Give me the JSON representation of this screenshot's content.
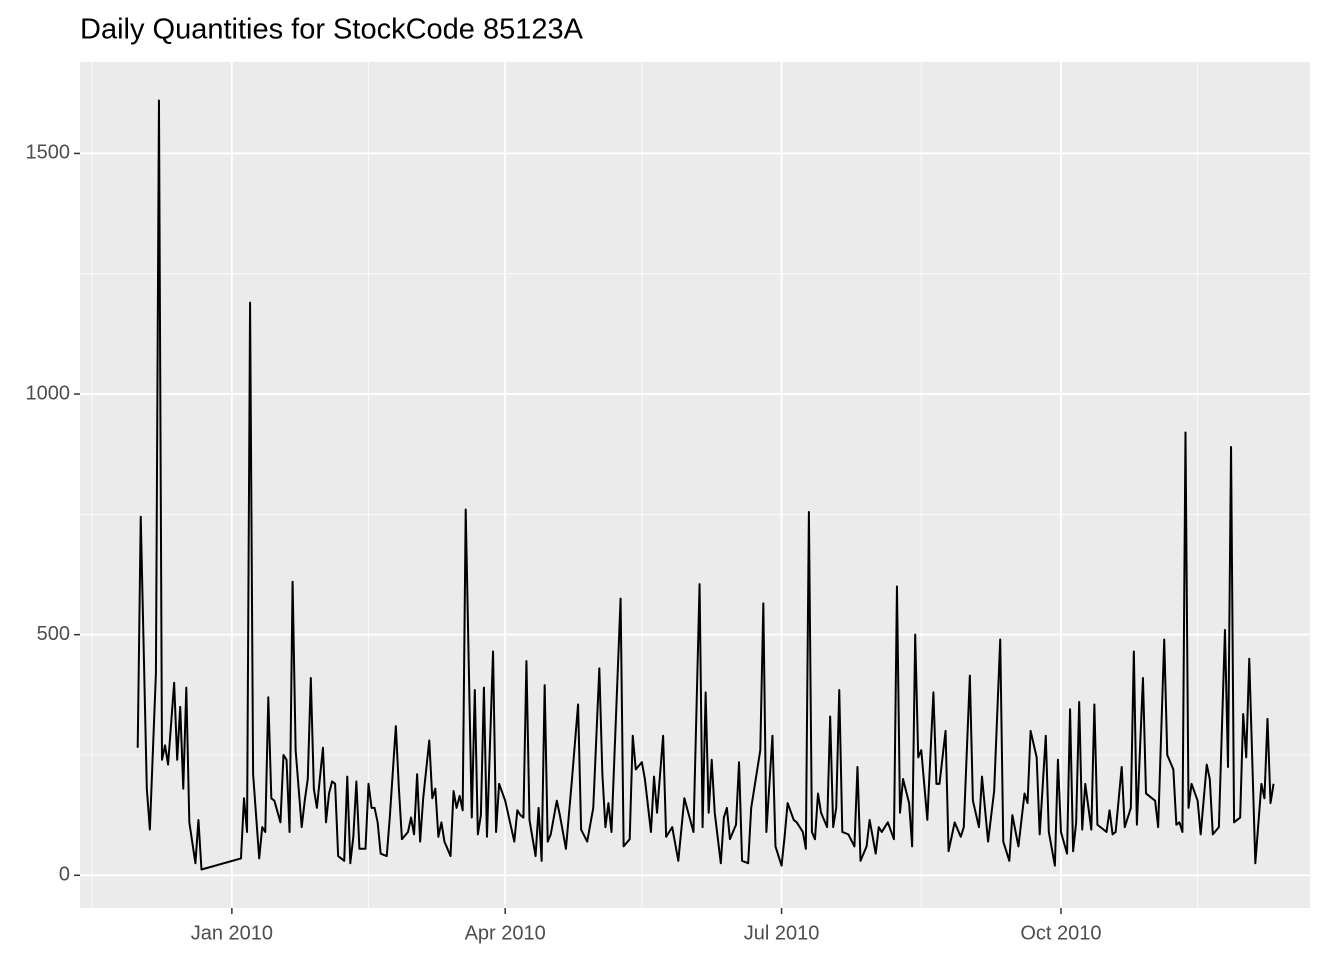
{
  "chart_data": {
    "type": "line",
    "title": "Daily Quantities for StockCode 85123A",
    "color": "#000000",
    "x": [
      "2009-12-01",
      "2009-12-02",
      "2009-12-04",
      "2009-12-05",
      "2009-12-07",
      "2009-12-08",
      "2009-12-09",
      "2009-12-10",
      "2009-12-11",
      "2009-12-13",
      "2009-12-14",
      "2009-12-15",
      "2009-12-16",
      "2009-12-17",
      "2009-12-18",
      "2009-12-20",
      "2009-12-21",
      "2009-12-22",
      "2010-01-04",
      "2010-01-05",
      "2010-01-06",
      "2010-01-07",
      "2010-01-08",
      "2010-01-10",
      "2010-01-11",
      "2010-01-12",
      "2010-01-13",
      "2010-01-14",
      "2010-01-15",
      "2010-01-17",
      "2010-01-18",
      "2010-01-19",
      "2010-01-20",
      "2010-01-21",
      "2010-01-22",
      "2010-01-24",
      "2010-01-25",
      "2010-01-26",
      "2010-01-27",
      "2010-01-28",
      "2010-01-29",
      "2010-01-31",
      "2010-02-01",
      "2010-02-02",
      "2010-02-03",
      "2010-02-04",
      "2010-02-05",
      "2010-02-07",
      "2010-02-08",
      "2010-02-09",
      "2010-02-10",
      "2010-02-11",
      "2010-02-12",
      "2010-02-14",
      "2010-02-15",
      "2010-02-16",
      "2010-02-17",
      "2010-02-18",
      "2010-02-19",
      "2010-02-21",
      "2010-02-22",
      "2010-02-24",
      "2010-02-25",
      "2010-02-26",
      "2010-02-28",
      "2010-03-01",
      "2010-03-02",
      "2010-03-03",
      "2010-03-04",
      "2010-03-05",
      "2010-03-07",
      "2010-03-08",
      "2010-03-09",
      "2010-03-10",
      "2010-03-11",
      "2010-03-12",
      "2010-03-14",
      "2010-03-15",
      "2010-03-16",
      "2010-03-17",
      "2010-03-18",
      "2010-03-19",
      "2010-03-21",
      "2010-03-22",
      "2010-03-23",
      "2010-03-24",
      "2010-03-25",
      "2010-03-26",
      "2010-03-28",
      "2010-03-29",
      "2010-03-30",
      "2010-04-01",
      "2010-04-04",
      "2010-04-05",
      "2010-04-06",
      "2010-04-07",
      "2010-04-08",
      "2010-04-09",
      "2010-04-11",
      "2010-04-12",
      "2010-04-13",
      "2010-04-14",
      "2010-04-15",
      "2010-04-16",
      "2010-04-18",
      "2010-04-19",
      "2010-04-21",
      "2010-04-23",
      "2010-04-25",
      "2010-04-26",
      "2010-04-28",
      "2010-04-30",
      "2010-05-02",
      "2010-05-03",
      "2010-05-04",
      "2010-05-05",
      "2010-05-06",
      "2010-05-09",
      "2010-05-10",
      "2010-05-12",
      "2010-05-13",
      "2010-05-14",
      "2010-05-16",
      "2010-05-17",
      "2010-05-19",
      "2010-05-20",
      "2010-05-21",
      "2010-05-23",
      "2010-05-24",
      "2010-05-26",
      "2010-05-27",
      "2010-05-28",
      "2010-05-30",
      "2010-06-02",
      "2010-06-04",
      "2010-06-05",
      "2010-06-06",
      "2010-06-07",
      "2010-06-08",
      "2010-06-09",
      "2010-06-11",
      "2010-06-12",
      "2010-06-13",
      "2010-06-14",
      "2010-06-16",
      "2010-06-17",
      "2010-06-18",
      "2010-06-20",
      "2010-06-21",
      "2010-06-24",
      "2010-06-25",
      "2010-06-26",
      "2010-06-28",
      "2010-06-29",
      "2010-07-01",
      "2010-07-02",
      "2010-07-03",
      "2010-07-05",
      "2010-07-06",
      "2010-07-08",
      "2010-07-09",
      "2010-07-10",
      "2010-07-11",
      "2010-07-12",
      "2010-07-13",
      "2010-07-14",
      "2010-07-16",
      "2010-07-17",
      "2010-07-18",
      "2010-07-19",
      "2010-07-20",
      "2010-07-21",
      "2010-07-23",
      "2010-07-25",
      "2010-07-26",
      "2010-07-27",
      "2010-07-29",
      "2010-07-30",
      "2010-08-01",
      "2010-08-02",
      "2010-08-03",
      "2010-08-05",
      "2010-08-07",
      "2010-08-08",
      "2010-08-09",
      "2010-08-10",
      "2010-08-12",
      "2010-08-13",
      "2010-08-14",
      "2010-08-15",
      "2010-08-16",
      "2010-08-18",
      "2010-08-20",
      "2010-08-21",
      "2010-08-22",
      "2010-08-24",
      "2010-08-25",
      "2010-08-27",
      "2010-08-29",
      "2010-08-30",
      "2010-09-01",
      "2010-09-02",
      "2010-09-04",
      "2010-09-05",
      "2010-09-07",
      "2010-09-09",
      "2010-09-11",
      "2010-09-12",
      "2010-09-14",
      "2010-09-15",
      "2010-09-17",
      "2010-09-19",
      "2010-09-20",
      "2010-09-21",
      "2010-09-23",
      "2010-09-24",
      "2010-09-26",
      "2010-09-27",
      "2010-09-29",
      "2010-09-30",
      "2010-10-01",
      "2010-10-03",
      "2010-10-04",
      "2010-10-05",
      "2010-10-06",
      "2010-10-07",
      "2010-10-08",
      "2010-10-09",
      "2010-10-11",
      "2010-10-12",
      "2010-10-13",
      "2010-10-14",
      "2010-10-16",
      "2010-10-17",
      "2010-10-18",
      "2010-10-19",
      "2010-10-21",
      "2010-10-22",
      "2010-10-24",
      "2010-10-25",
      "2010-10-26",
      "2010-10-28",
      "2010-10-29",
      "2010-10-31",
      "2010-11-01",
      "2010-11-02",
      "2010-11-04",
      "2010-11-05",
      "2010-11-07",
      "2010-11-08",
      "2010-11-09",
      "2010-11-10",
      "2010-11-11",
      "2010-11-12",
      "2010-11-13",
      "2010-11-15",
      "2010-11-16",
      "2010-11-18",
      "2010-11-19",
      "2010-11-20",
      "2010-11-22",
      "2010-11-24",
      "2010-11-25",
      "2010-11-26",
      "2010-11-27",
      "2010-11-29",
      "2010-11-30",
      "2010-12-01",
      "2010-12-02",
      "2010-12-04",
      "2010-12-06",
      "2010-12-07",
      "2010-12-08",
      "2010-12-09",
      "2010-12-10"
    ],
    "values": [
      265,
      745,
      180,
      95,
      420,
      1610,
      240,
      270,
      230,
      400,
      240,
      350,
      180,
      390,
      110,
      25,
      115,
      12,
      35,
      160,
      90,
      1190,
      210,
      35,
      100,
      90,
      370,
      160,
      155,
      110,
      250,
      240,
      90,
      610,
      260,
      100,
      155,
      200,
      410,
      180,
      140,
      265,
      110,
      170,
      195,
      190,
      40,
      30,
      205,
      25,
      80,
      195,
      55,
      55,
      190,
      140,
      140,
      110,
      45,
      40,
      120,
      310,
      180,
      75,
      90,
      120,
      85,
      210,
      70,
      160,
      280,
      160,
      180,
      80,
      110,
      70,
      40,
      175,
      140,
      165,
      135,
      760,
      120,
      385,
      85,
      125,
      390,
      80,
      465,
      90,
      190,
      155,
      70,
      135,
      125,
      120,
      445,
      115,
      40,
      140,
      30,
      395,
      70,
      85,
      155,
      125,
      55,
      200,
      355,
      95,
      70,
      140,
      430,
      210,
      100,
      150,
      90,
      575,
      60,
      75,
      290,
      220,
      235,
      200,
      90,
      205,
      130,
      290,
      80,
      100,
      65,
      30,
      160,
      90,
      605,
      100,
      380,
      130,
      240,
      130,
      25,
      120,
      140,
      75,
      105,
      235,
      30,
      25,
      140,
      260,
      565,
      90,
      290,
      60,
      20,
      80,
      150,
      115,
      110,
      90,
      55,
      755,
      90,
      75,
      170,
      130,
      100,
      330,
      100,
      140,
      385,
      90,
      85,
      60,
      225,
      30,
      60,
      115,
      45,
      100,
      90,
      110,
      75,
      600,
      130,
      200,
      150,
      60,
      500,
      245,
      260,
      115,
      380,
      190,
      190,
      300,
      50,
      110,
      80,
      100,
      415,
      155,
      100,
      205,
      70,
      175,
      490,
      70,
      30,
      125,
      60,
      170,
      150,
      300,
      245,
      85,
      290,
      90,
      20,
      240,
      90,
      45,
      345,
      50,
      110,
      360,
      95,
      190,
      95,
      355,
      105,
      100,
      90,
      135,
      85,
      90,
      225,
      100,
      140,
      465,
      105,
      410,
      170,
      160,
      155,
      100,
      490,
      250,
      220,
      105,
      110,
      90,
      920,
      140,
      190,
      155,
      85,
      230,
      200,
      85,
      100,
      510,
      225,
      890,
      110,
      120,
      335,
      245,
      450,
      25,
      190,
      160,
      325,
      150,
      190
    ],
    "xlim": [
      "2009-11-12",
      "2010-12-22"
    ],
    "xticks": [
      {
        "value": "2010-01-01",
        "label": "Jan 2010"
      },
      {
        "value": "2010-04-01",
        "label": "Apr 2010"
      },
      {
        "value": "2010-07-01",
        "label": "Jul 2010"
      },
      {
        "value": "2010-10-01",
        "label": "Oct 2010"
      }
    ],
    "x_minor_ticks": [
      "2009-11-16",
      "2010-02-15",
      "2010-05-16",
      "2010-08-16",
      "2010-11-15"
    ],
    "ylim": [
      -68,
      1690
    ],
    "yticks": [
      0,
      500,
      1000,
      1500
    ],
    "y_minor_ticks": [
      250,
      750,
      1250
    ],
    "grid": true
  }
}
